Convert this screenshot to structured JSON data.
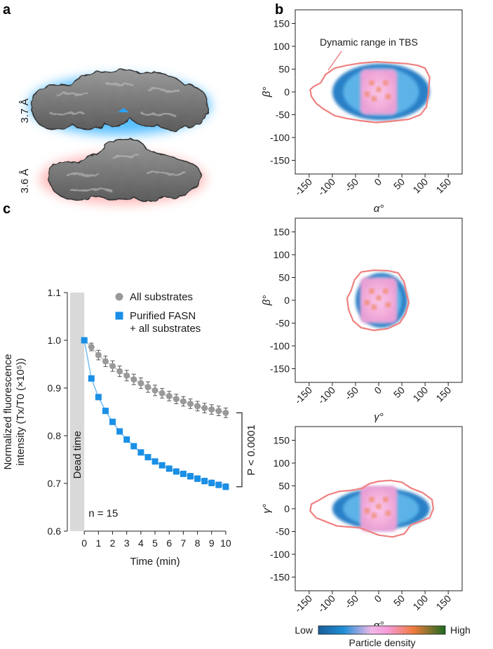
{
  "panels": {
    "a": {
      "letter": "a",
      "resolution_top": "3.7 Å",
      "resolution_bottom": "3.6 Å",
      "glow_top_color": "#3ab4ff",
      "glow_bottom_color": "#ff8a8a",
      "map_color": "#7a7a7a"
    },
    "b": {
      "letter": "b",
      "annotation": "Dynamic range in TBS"
    },
    "c": {
      "letter": "c",
      "dead_time_label": "Dead time",
      "n_label": "n = 15"
    }
  },
  "colorbar": {
    "low_label": "Low",
    "high_label": "High",
    "title": "Particle density",
    "stops": [
      "#1a5c99",
      "#1f8fd6",
      "#f2b8e8",
      "#f59ad6",
      "#f07a3c",
      "#1a6b20"
    ]
  },
  "colors": {
    "outline": "#f08080",
    "density_outer": "#2a80c6",
    "density_mid": "#5cb3e8",
    "density_core": "#f4b0e4",
    "density_hot": "#f08a66",
    "grey_series": "#999999",
    "blue_series": "#1a8fe6",
    "dead_time_fill": "#d9d9d9"
  },
  "chart_data": [
    {
      "type": "scatter",
      "panel": "b-top",
      "xlabel": "α°",
      "ylabel": "β°",
      "xlim": [
        -180,
        180
      ],
      "ylim": [
        -180,
        180
      ],
      "xticks": [
        -150,
        -100,
        -50,
        0,
        50,
        100,
        150
      ],
      "yticks": [
        150,
        100,
        50,
        0,
        -50,
        -100,
        -150
      ],
      "annotation": "Dynamic range in TBS",
      "outline": [
        [
          -125,
          20
        ],
        [
          -115,
          38
        ],
        [
          -95,
          52
        ],
        [
          -70,
          58
        ],
        [
          -40,
          63
        ],
        [
          -5,
          66
        ],
        [
          30,
          64
        ],
        [
          60,
          62
        ],
        [
          85,
          58
        ],
        [
          100,
          52
        ],
        [
          110,
          32
        ],
        [
          107,
          -5
        ],
        [
          103,
          -33
        ],
        [
          90,
          -50
        ],
        [
          65,
          -60
        ],
        [
          30,
          -64
        ],
        [
          -5,
          -67
        ],
        [
          -40,
          -63
        ],
        [
          -70,
          -58
        ],
        [
          -95,
          -52
        ],
        [
          -120,
          -37
        ],
        [
          -135,
          -25
        ],
        [
          -145,
          -10
        ],
        [
          -148,
          5
        ],
        [
          -140,
          12
        ]
      ],
      "density_extent": {
        "x": [
          -100,
          110
        ],
        "y": [
          -62,
          62
        ]
      }
    },
    {
      "type": "scatter",
      "panel": "b-middle",
      "xlabel": "γ°",
      "ylabel": "β°",
      "xlim": [
        -180,
        180
      ],
      "ylim": [
        -180,
        180
      ],
      "xticks": [
        -150,
        -100,
        -50,
        0,
        50,
        100,
        150
      ],
      "yticks": [
        150,
        100,
        50,
        0,
        -50,
        -100,
        -150
      ],
      "outline": [
        [
          -60,
          20
        ],
        [
          -52,
          45
        ],
        [
          -38,
          62
        ],
        [
          -10,
          66
        ],
        [
          20,
          65
        ],
        [
          42,
          60
        ],
        [
          55,
          40
        ],
        [
          60,
          15
        ],
        [
          65,
          -5
        ],
        [
          58,
          -30
        ],
        [
          45,
          -50
        ],
        [
          20,
          -62
        ],
        [
          -10,
          -66
        ],
        [
          -38,
          -60
        ],
        [
          -55,
          -45
        ],
        [
          -65,
          -20
        ],
        [
          -68,
          5
        ]
      ],
      "density_extent": {
        "x": [
          -50,
          62
        ],
        "y": [
          -60,
          60
        ]
      }
    },
    {
      "type": "scatter",
      "panel": "b-bottom",
      "xlabel": "α°",
      "ylabel": "γ°",
      "xlim": [
        -180,
        180
      ],
      "ylim": [
        -180,
        180
      ],
      "xticks": [
        -150,
        -100,
        -50,
        0,
        50,
        100,
        150
      ],
      "yticks": [
        150,
        100,
        50,
        0,
        -50,
        -100,
        -150
      ],
      "outline": [
        [
          -130,
          18
        ],
        [
          -110,
          30
        ],
        [
          -85,
          38
        ],
        [
          -60,
          40
        ],
        [
          -35,
          45
        ],
        [
          -20,
          55
        ],
        [
          0,
          60
        ],
        [
          25,
          62
        ],
        [
          50,
          58
        ],
        [
          70,
          45
        ],
        [
          95,
          35
        ],
        [
          115,
          20
        ],
        [
          118,
          0
        ],
        [
          110,
          -20
        ],
        [
          90,
          -28
        ],
        [
          70,
          -35
        ],
        [
          55,
          -55
        ],
        [
          30,
          -62
        ],
        [
          0,
          -58
        ],
        [
          -20,
          -50
        ],
        [
          -40,
          -42
        ],
        [
          -65,
          -40
        ],
        [
          -90,
          -38
        ],
        [
          -115,
          -28
        ],
        [
          -135,
          -20
        ],
        [
          -148,
          -5
        ],
        [
          -145,
          10
        ]
      ],
      "density_extent": {
        "x": [
          -100,
          110
        ],
        "y": [
          -45,
          45
        ]
      }
    },
    {
      "type": "line",
      "panel": "c",
      "xlabel": "Time (min)",
      "ylabel": "Normalized fluorescence intensity (Tx/T0 (×10⁵))",
      "ylabel_line1": "Normalized fluorescence",
      "ylabel_line2": "intensity (Tx/T0 (×10⁵))",
      "xlim": [
        -1.2,
        10.5
      ],
      "ylim": [
        0.6,
        1.1
      ],
      "xticks": [
        0,
        1,
        2,
        3,
        4,
        5,
        6,
        7,
        8,
        9,
        10
      ],
      "yticks": [
        1.1,
        1.0,
        0.9,
        0.8,
        0.7,
        0.6
      ],
      "series": [
        {
          "name": "All substrates",
          "color": "#999999",
          "marker": "circle",
          "x": [
            0,
            0.5,
            1,
            1.5,
            2,
            2.5,
            3,
            3.5,
            4,
            4.5,
            5,
            5.5,
            6,
            6.5,
            7,
            7.5,
            8,
            8.5,
            9,
            9.5,
            10
          ],
          "y": [
            1.0,
            0.986,
            0.969,
            0.956,
            0.946,
            0.935,
            0.926,
            0.918,
            0.91,
            0.902,
            0.895,
            0.889,
            0.883,
            0.877,
            0.872,
            0.867,
            0.862,
            0.858,
            0.855,
            0.852,
            0.848
          ],
          "err": [
            0.0,
            0.008,
            0.01,
            0.011,
            0.011,
            0.011,
            0.011,
            0.011,
            0.011,
            0.011,
            0.011,
            0.01,
            0.01,
            0.01,
            0.01,
            0.01,
            0.01,
            0.01,
            0.01,
            0.01,
            0.01
          ]
        },
        {
          "name": "Purified FASN + all substrates",
          "name_line1": "Purified FASN",
          "name_line2": "+ all substrates",
          "color": "#1a8fe6",
          "marker": "square",
          "x": [
            0,
            0.5,
            1,
            1.5,
            2,
            2.5,
            3,
            3.5,
            4,
            4.5,
            5,
            5.5,
            6,
            6.5,
            7,
            7.5,
            8,
            8.5,
            9,
            9.5,
            10
          ],
          "y": [
            1.0,
            0.92,
            0.881,
            0.852,
            0.829,
            0.809,
            0.792,
            0.778,
            0.765,
            0.755,
            0.746,
            0.738,
            0.731,
            0.725,
            0.72,
            0.715,
            0.71,
            0.705,
            0.701,
            0.697,
            0.693
          ],
          "err": [
            0.0,
            0.003,
            0.004,
            0.004,
            0.005,
            0.005,
            0.005,
            0.005,
            0.005,
            0.005,
            0.005,
            0.005,
            0.005,
            0.005,
            0.005,
            0.006,
            0.006,
            0.006,
            0.006,
            0.006,
            0.006
          ]
        }
      ],
      "dead_time": [
        -1.0,
        0
      ],
      "significance_label": "P < 0.0001",
      "n_label": "n = 15"
    }
  ]
}
